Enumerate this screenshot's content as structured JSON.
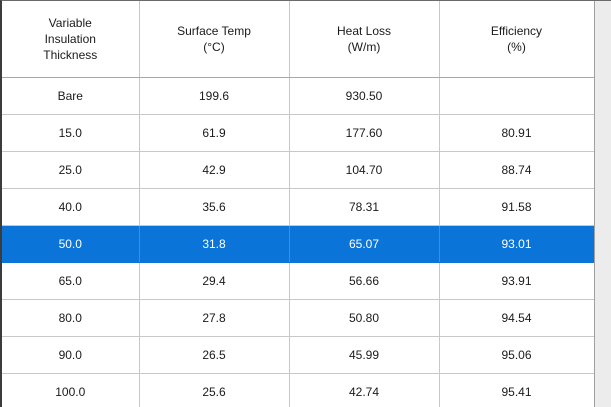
{
  "headers": [
    "Variable\nInsulation\nThickness",
    "Surface Temp\n(°C)",
    "Heat Loss\n(W/m)",
    "Efficiency\n(%)"
  ],
  "rows": [
    {
      "thickness": "Bare",
      "surface_temp": "199.6",
      "heat_loss": "930.50",
      "efficiency": ""
    },
    {
      "thickness": "15.0",
      "surface_temp": "61.9",
      "heat_loss": "177.60",
      "efficiency": "80.91"
    },
    {
      "thickness": "25.0",
      "surface_temp": "42.9",
      "heat_loss": "104.70",
      "efficiency": "88.74"
    },
    {
      "thickness": "40.0",
      "surface_temp": "35.6",
      "heat_loss": "78.31",
      "efficiency": "91.58"
    },
    {
      "thickness": "50.0",
      "surface_temp": "31.8",
      "heat_loss": "65.07",
      "efficiency": "93.01"
    },
    {
      "thickness": "65.0",
      "surface_temp": "29.4",
      "heat_loss": "56.66",
      "efficiency": "93.91"
    },
    {
      "thickness": "80.0",
      "surface_temp": "27.8",
      "heat_loss": "50.80",
      "efficiency": "94.54"
    },
    {
      "thickness": "90.0",
      "surface_temp": "26.5",
      "heat_loss": "45.99",
      "efficiency": "95.06"
    },
    {
      "thickness": "100.0",
      "surface_temp": "25.6",
      "heat_loss": "42.74",
      "efficiency": "95.41"
    }
  ],
  "selected_row_index": 4,
  "colors": {
    "selection": "#0a74d9",
    "selection_text": "#ffffff"
  }
}
